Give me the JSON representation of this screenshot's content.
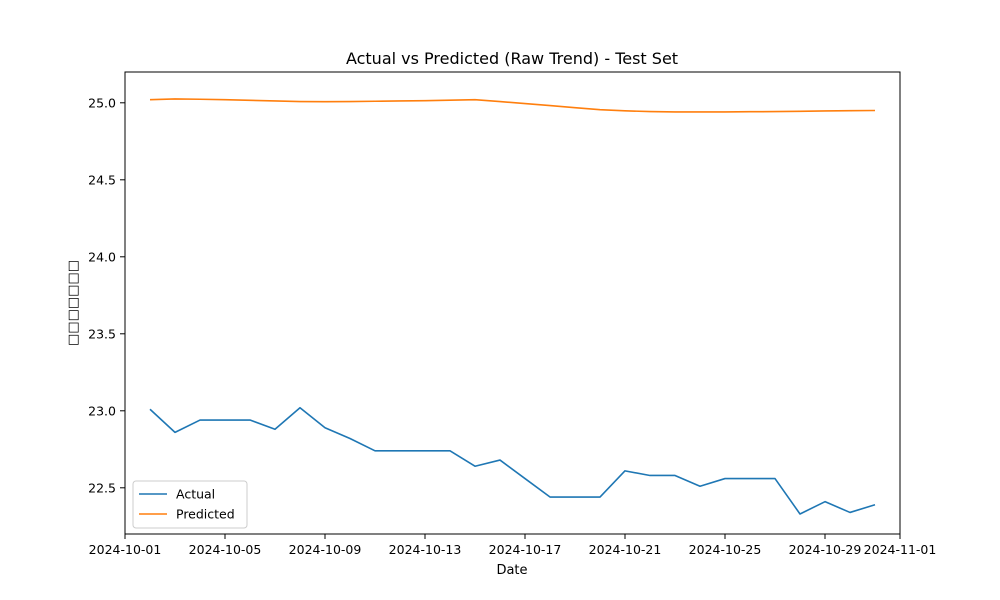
{
  "chart_data": {
    "type": "line",
    "title": "Actual vs Predicted (Raw Trend) - Test Set",
    "xlabel": "Date",
    "ylabel": "□□□□□□□",
    "x": [
      "2024-10-02",
      "2024-10-03",
      "2024-10-04",
      "2024-10-05",
      "2024-10-06",
      "2024-10-07",
      "2024-10-08",
      "2024-10-09",
      "2024-10-10",
      "2024-10-11",
      "2024-10-12",
      "2024-10-13",
      "2024-10-14",
      "2024-10-15",
      "2024-10-16",
      "2024-10-17",
      "2024-10-18",
      "2024-10-19",
      "2024-10-20",
      "2024-10-21",
      "2024-10-22",
      "2024-10-23",
      "2024-10-24",
      "2024-10-25",
      "2024-10-26",
      "2024-10-27",
      "2024-10-28",
      "2024-10-29",
      "2024-10-30",
      "2024-10-31"
    ],
    "series": [
      {
        "name": "Actual",
        "color": "#1f77b4",
        "values": [
          23.01,
          22.86,
          22.94,
          22.94,
          22.94,
          22.88,
          23.02,
          22.89,
          22.82,
          22.74,
          22.74,
          22.74,
          22.74,
          22.64,
          22.68,
          22.56,
          22.44,
          22.44,
          22.44,
          22.61,
          22.58,
          22.58,
          22.51,
          22.56,
          22.56,
          22.56,
          22.33,
          22.41,
          22.34,
          22.39
        ]
      },
      {
        "name": "Predicted",
        "color": "#ff7f0e",
        "values": [
          25.02,
          25.025,
          25.023,
          25.02,
          25.016,
          25.012,
          25.008,
          25.007,
          25.008,
          25.01,
          25.012,
          25.014,
          25.017,
          25.02,
          25.008,
          24.995,
          24.982,
          24.968,
          24.955,
          24.948,
          24.943,
          24.941,
          24.941,
          24.941,
          24.942,
          24.943,
          24.945,
          24.947,
          24.949,
          24.95
        ]
      }
    ],
    "xticks": [
      "2024-10-01",
      "2024-10-05",
      "2024-10-09",
      "2024-10-13",
      "2024-10-17",
      "2024-10-21",
      "2024-10-25",
      "2024-10-29",
      "2024-11-01"
    ],
    "xlim": [
      "2024-10-01",
      "2024-11-01"
    ],
    "yticks": [
      22.5,
      23.0,
      23.5,
      24.0,
      24.5,
      25.0
    ],
    "ytick_labels": [
      "22.5",
      "23.0",
      "23.5",
      "24.0",
      "24.5",
      "25.0"
    ],
    "ylim": [
      22.2,
      25.2
    ],
    "grid": false,
    "legend_position": "lower-left"
  }
}
